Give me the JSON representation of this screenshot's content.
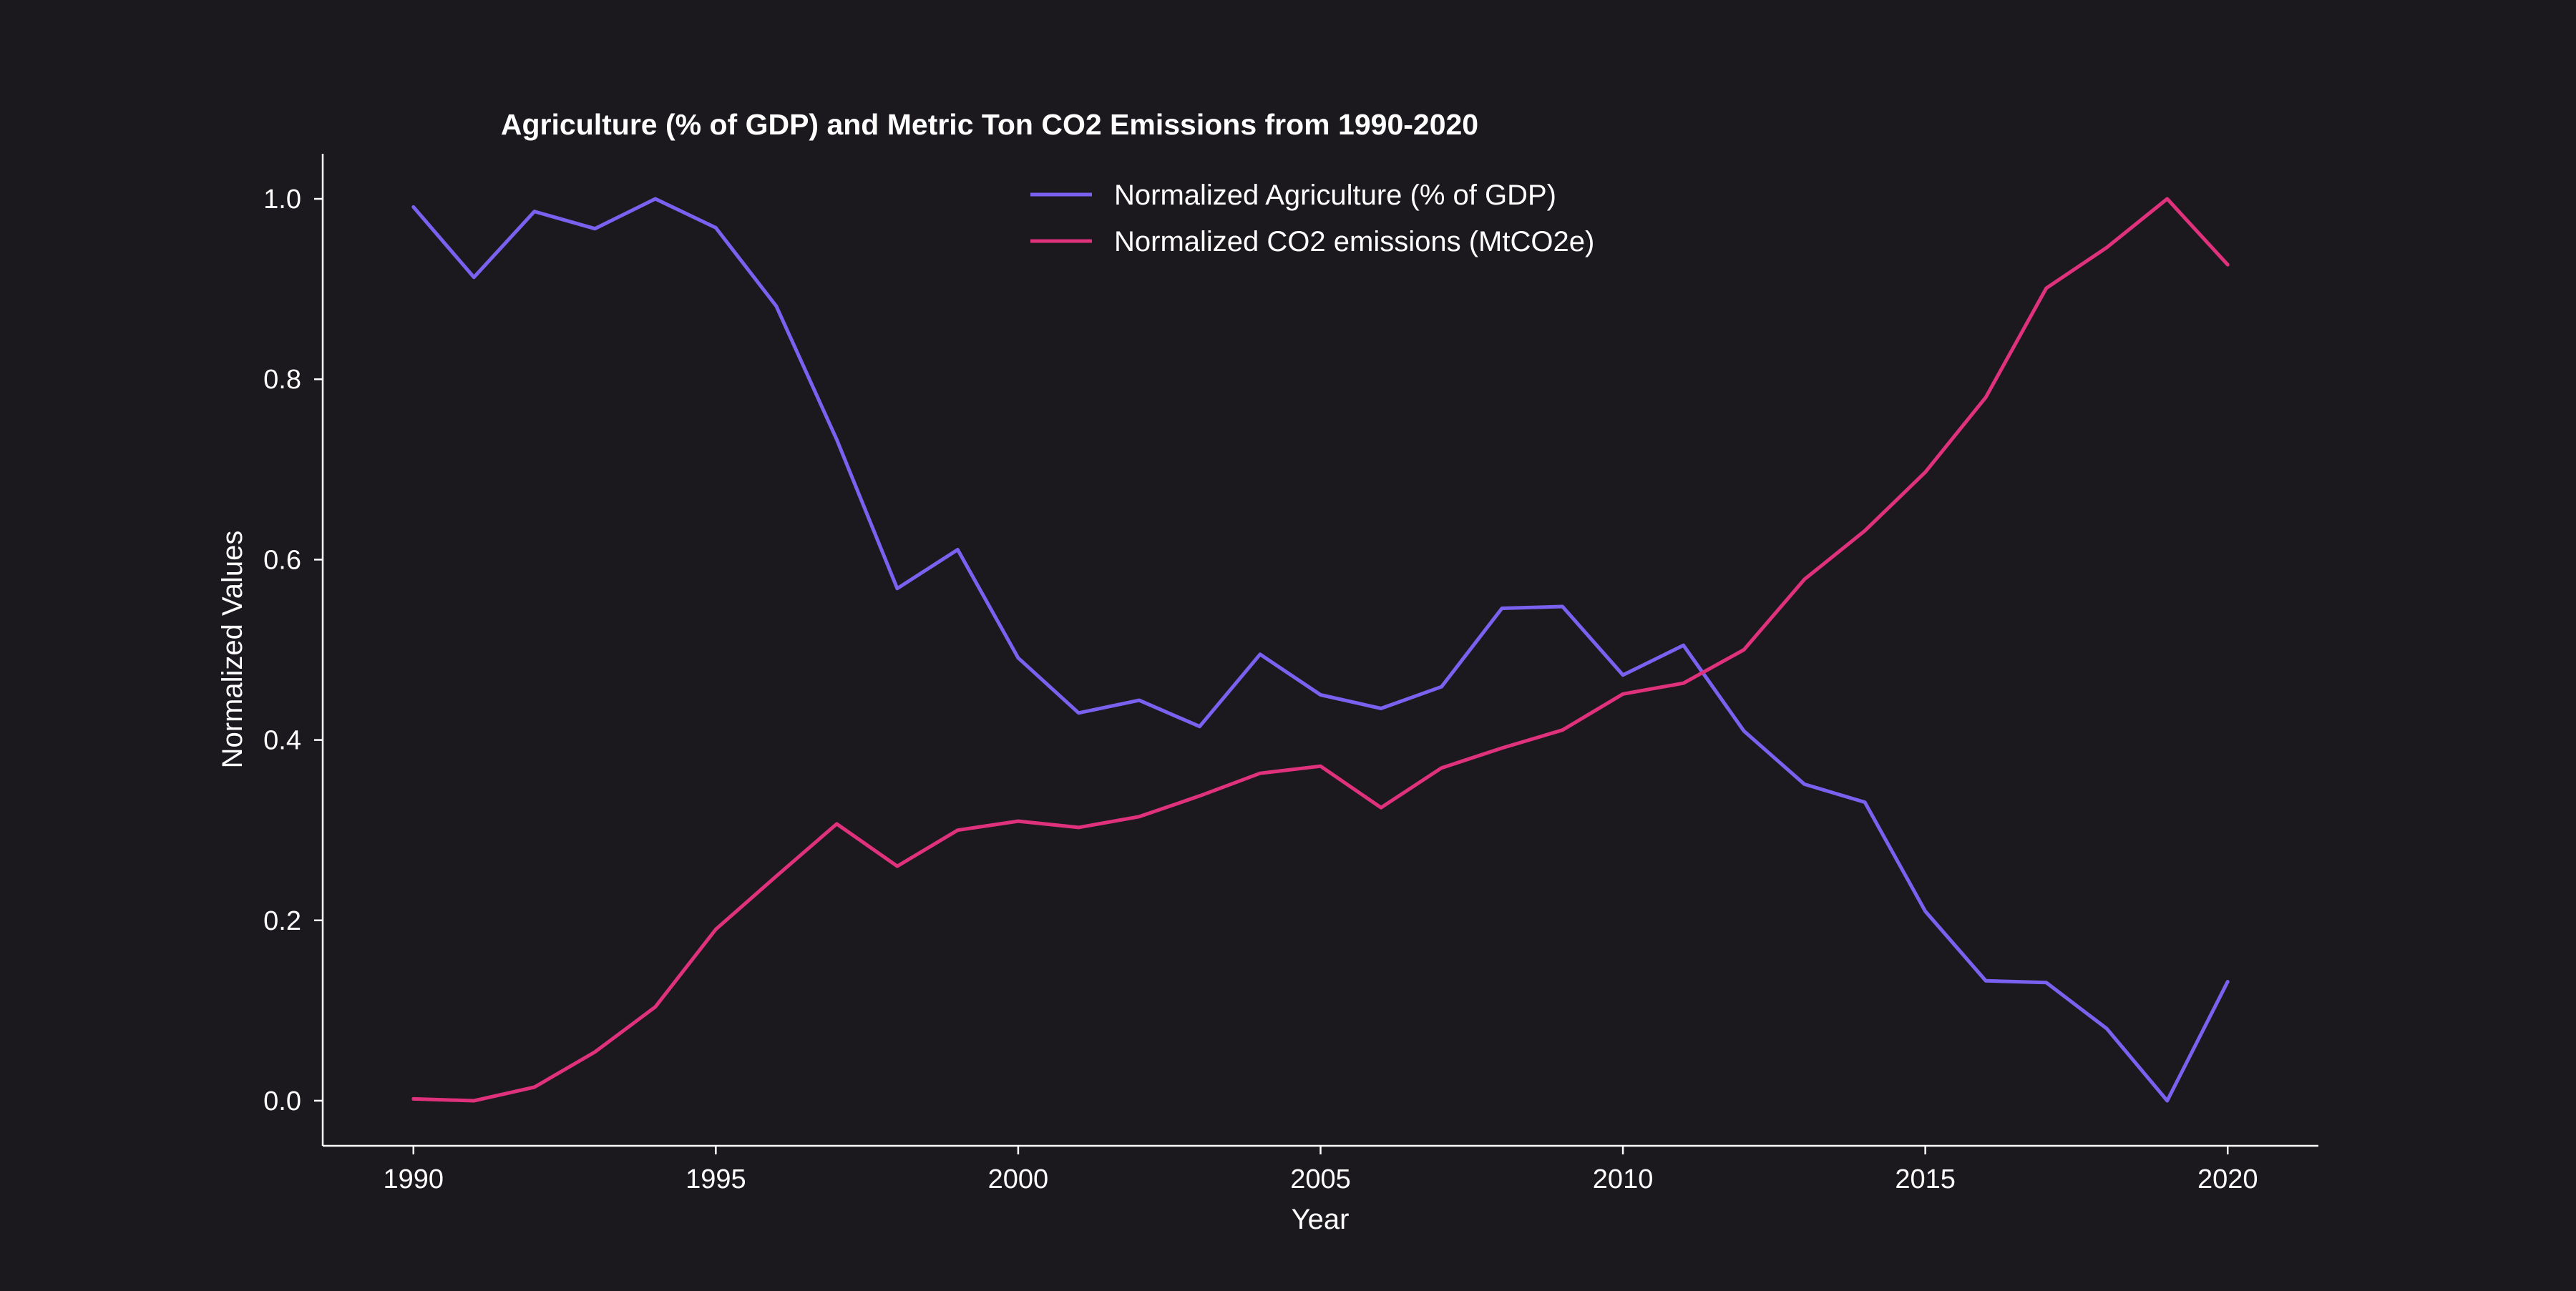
{
  "chart_data": {
    "type": "line",
    "title": "Agriculture (% of GDP) and Metric Ton CO2 Emissions from 1990-2020",
    "xlabel": "Year",
    "ylabel": "Normalized Values",
    "x": [
      1990,
      1991,
      1992,
      1993,
      1994,
      1995,
      1996,
      1997,
      1998,
      1999,
      2000,
      2001,
      2002,
      2003,
      2004,
      2005,
      2006,
      2007,
      2008,
      2009,
      2010,
      2011,
      2012,
      2013,
      2014,
      2015,
      2016,
      2017,
      2018,
      2019,
      2020
    ],
    "xlim": [
      1988.5,
      2021.5
    ],
    "ylim": [
      -0.05,
      1.05
    ],
    "x_ticks": [
      "1990",
      "1995",
      "2000",
      "2005",
      "2010",
      "2015",
      "2020"
    ],
    "y_ticks": [
      "0.0",
      "0.2",
      "0.4",
      "0.6",
      "0.8",
      "1.0"
    ],
    "grid": false,
    "legend_position": "top-center",
    "series": [
      {
        "name": "Normalized Agriculture (% of GDP)",
        "color": "#7b61f0",
        "values": [
          0.991,
          0.913,
          0.986,
          0.967,
          1.0,
          0.968,
          0.881,
          0.733,
          0.568,
          0.611,
          0.491,
          0.43,
          0.444,
          0.415,
          0.495,
          0.45,
          0.435,
          0.459,
          0.546,
          0.548,
          0.472,
          0.505,
          0.41,
          0.351,
          0.331,
          0.21,
          0.133,
          0.131,
          0.08,
          0.0,
          0.132
        ]
      },
      {
        "name": "Normalized CO2 emissions (MtCO2e)",
        "color": "#e0317d",
        "values": [
          0.002,
          0.0,
          0.015,
          0.054,
          0.104,
          0.19,
          0.249,
          0.307,
          0.26,
          0.3,
          0.31,
          0.303,
          0.315,
          0.338,
          0.363,
          0.371,
          0.325,
          0.369,
          0.391,
          0.411,
          0.451,
          0.463,
          0.5,
          0.578,
          0.632,
          0.697,
          0.78,
          0.901,
          0.946,
          1.0,
          0.927
        ]
      }
    ]
  }
}
